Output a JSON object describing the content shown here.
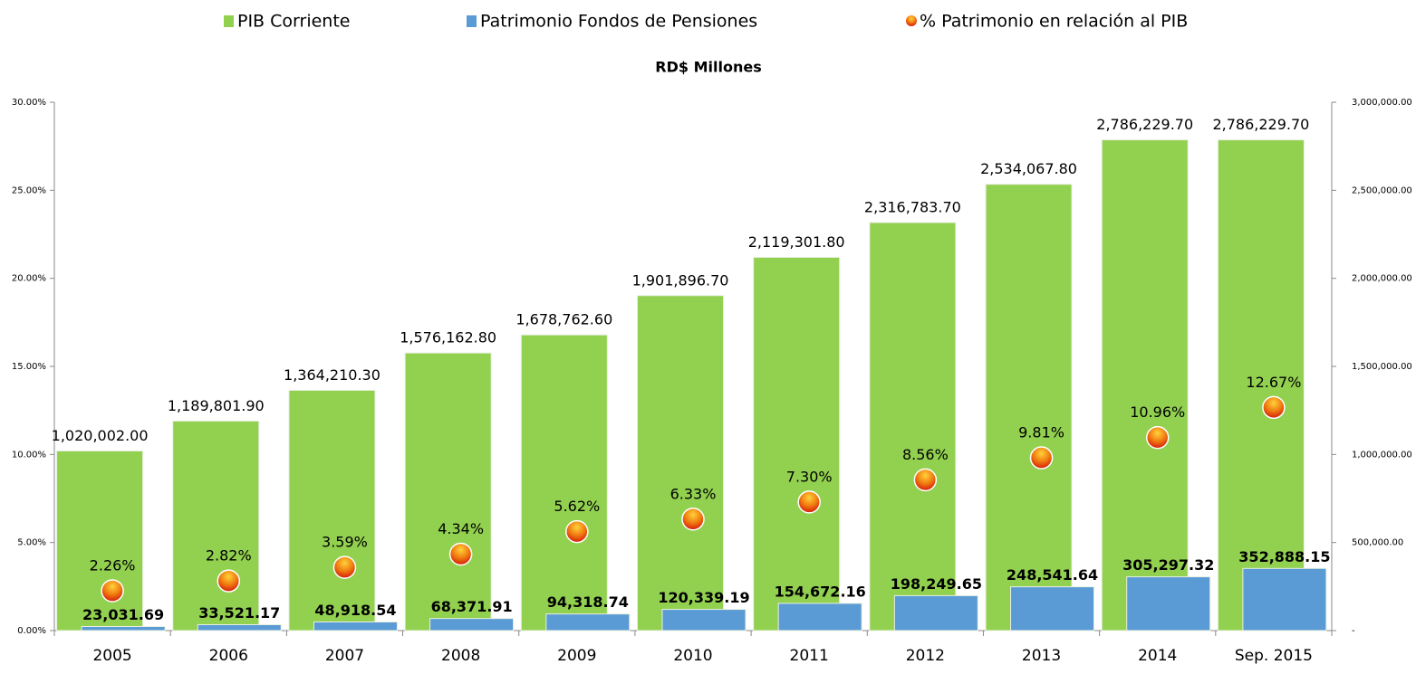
{
  "chart_data": {
    "type": "bar",
    "subtitle": "RD$ Millones",
    "categories": [
      "2005",
      "2006",
      "2007",
      "2008",
      "2009",
      "2010",
      "2011",
      "2012",
      "2013",
      "2014",
      "Sep. 2015"
    ],
    "series": [
      {
        "name": "PIB Corriente",
        "type": "bar",
        "axis": "y2",
        "color": "#92d050",
        "values": [
          1020002.0,
          1189801.9,
          1364210.3,
          1576162.8,
          1678762.6,
          1901896.7,
          2119301.8,
          2316783.7,
          2534067.8,
          2786229.7,
          2786229.7
        ],
        "value_labels": [
          "1,020,002.00",
          "1,189,801.90",
          "1,364,210.30",
          "1,576,162.80",
          "1,678,762.60",
          "1,901,896.70",
          "2,119,301.80",
          "2,316,783.70",
          "2,534,067.80",
          "2,786,229.70",
          "2,786,229.70"
        ]
      },
      {
        "name": "Patrimonio Fondos de Pensiones",
        "type": "bar",
        "axis": "y2",
        "color": "#5b9bd5",
        "values": [
          23031.69,
          33521.17,
          48918.54,
          68371.91,
          94318.74,
          120339.19,
          154672.16,
          198249.65,
          248541.64,
          305297.32,
          352888.15
        ],
        "value_labels": [
          "23,031.69",
          "33,521.17",
          "48,918.54",
          "68,371.91",
          "94,318.74",
          "120,339.19",
          "154,672.16",
          "198,249.65",
          "248,541.64",
          "305,297.32",
          "352,888.15"
        ]
      },
      {
        "name": "% Patrimonio en relación al PIB",
        "type": "scatter",
        "axis": "y",
        "color": "#e8380d",
        "values": [
          2.26,
          2.82,
          3.59,
          4.34,
          5.62,
          6.33,
          7.3,
          8.56,
          9.81,
          10.96,
          12.67
        ],
        "value_labels": [
          "2.26%",
          "2.82%",
          "3.59%",
          "4.34%",
          "5.62%",
          "6.33%",
          "7.30%",
          "8.56%",
          "9.81%",
          "10.96%",
          "12.67%"
        ]
      }
    ],
    "ylim": [
      0,
      30
    ],
    "yticks": [
      {
        "value": 0,
        "label": "0.00%"
      },
      {
        "value": 5,
        "label": "5.00%"
      },
      {
        "value": 10,
        "label": "10.00%"
      },
      {
        "value": 15,
        "label": "15.00%"
      },
      {
        "value": 20,
        "label": "20.00%"
      },
      {
        "value": 25,
        "label": "25.00%"
      },
      {
        "value": 30,
        "label": "30.00%"
      }
    ],
    "y2lim": [
      0,
      3000000
    ],
    "y2ticks": [
      {
        "value": 0,
        "label": "-"
      },
      {
        "value": 500000,
        "label": "500,000.00"
      },
      {
        "value": 1000000,
        "label": "1,000,000.00"
      },
      {
        "value": 1500000,
        "label": "1,500,000.00"
      },
      {
        "value": 2000000,
        "label": "2,000,000.00"
      },
      {
        "value": 2500000,
        "label": "2,500,000.00"
      },
      {
        "value": 3000000,
        "label": "3,000,000.00"
      }
    ],
    "legend": "top"
  }
}
